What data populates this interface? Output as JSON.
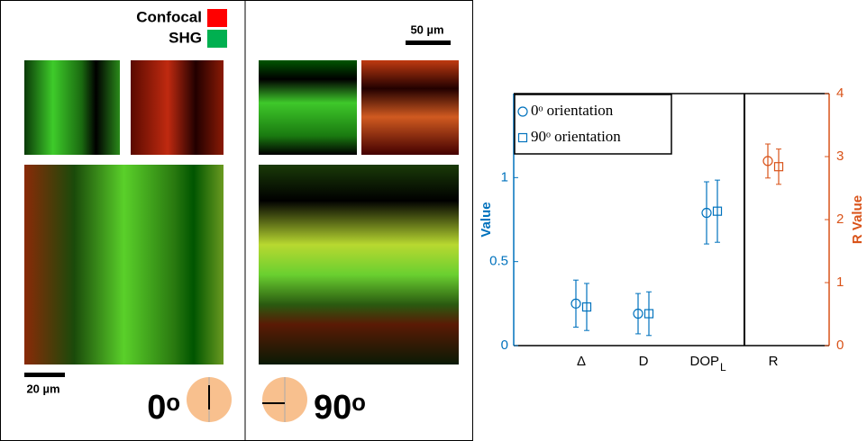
{
  "figure": {
    "legend": {
      "confocal": "Confocal",
      "shg": "SHG"
    },
    "scale_bars": {
      "top": "50 µm",
      "bottom": "20 µm"
    },
    "orientations": {
      "left": "0ᵒ",
      "right": "90ᵒ"
    }
  },
  "chart_data": {
    "type": "errorbar",
    "categories": [
      "Δ",
      "D",
      "DOP",
      "R"
    ],
    "category_subscripts": [
      null,
      null,
      "L",
      null
    ],
    "y_label": "Value",
    "y2_label": "R Value",
    "ylim": [
      0,
      1.5
    ],
    "yticks": [
      0,
      0.5,
      1
    ],
    "y2lim": [
      0,
      4
    ],
    "y2ticks": [
      0,
      1,
      2,
      3,
      4
    ],
    "y_color": "#0072bd",
    "y2_color": "#d95319",
    "series": [
      {
        "name": "0ᵒ orientation",
        "marker": "circle",
        "color": "#0072bd",
        "values": [
          0.25,
          0.19,
          0.79,
          null
        ],
        "errors": [
          0.14,
          0.12,
          0.185,
          null
        ],
        "y2_values": [
          null,
          null,
          null,
          2.93
        ],
        "y2_errors": [
          null,
          null,
          null,
          0.27
        ]
      },
      {
        "name": "90ᵒ orientation",
        "marker": "square",
        "color": "#0072bd",
        "values": [
          0.23,
          0.19,
          0.8,
          null
        ],
        "errors": [
          0.14,
          0.13,
          0.185,
          null
        ],
        "y2_values": [
          null,
          null,
          null,
          2.84
        ],
        "y2_errors": [
          null,
          null,
          null,
          0.28
        ]
      }
    ]
  }
}
